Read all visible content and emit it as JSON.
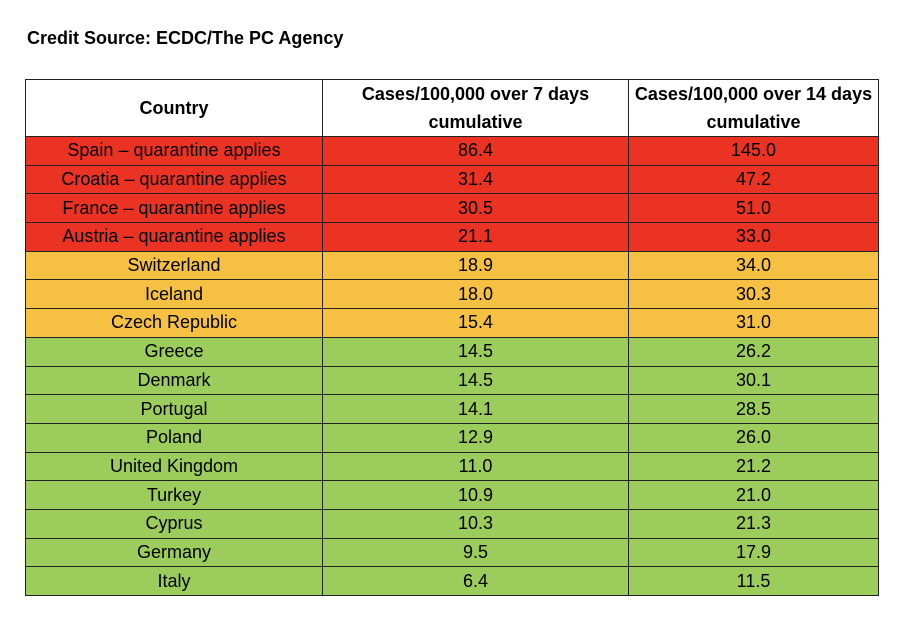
{
  "credit": "Credit Source: ECDC/The PC Agency",
  "headers": {
    "country": "Country",
    "cases7": "Cases/100,000 over 7 days cumulative",
    "cases14": "Cases/100,000 over 14 days cumulative"
  },
  "colors": {
    "quarantine": "#ea3323",
    "amber": "#f6c142",
    "green": "#9ccc5c"
  },
  "rows": [
    {
      "country": "Spain – quarantine applies",
      "cases7": "86.4",
      "cases14": "145.0",
      "status": "quarantine"
    },
    {
      "country": "Croatia – quarantine applies",
      "cases7": "31.4",
      "cases14": "47.2",
      "status": "quarantine"
    },
    {
      "country": "France – quarantine applies",
      "cases7": "30.5",
      "cases14": "51.0",
      "status": "quarantine"
    },
    {
      "country": "Austria – quarantine applies",
      "cases7": "21.1",
      "cases14": "33.0",
      "status": "quarantine"
    },
    {
      "country": "Switzerland",
      "cases7": "18.9",
      "cases14": "34.0",
      "status": "amber"
    },
    {
      "country": "Iceland",
      "cases7": "18.0",
      "cases14": "30.3",
      "status": "amber"
    },
    {
      "country": "Czech Republic",
      "cases7": "15.4",
      "cases14": "31.0",
      "status": "amber"
    },
    {
      "country": "Greece",
      "cases7": "14.5",
      "cases14": "26.2",
      "status": "green"
    },
    {
      "country": "Denmark",
      "cases7": "14.5",
      "cases14": "30.1",
      "status": "green"
    },
    {
      "country": "Portugal",
      "cases7": "14.1",
      "cases14": "28.5",
      "status": "green"
    },
    {
      "country": "Poland",
      "cases7": "12.9",
      "cases14": "26.0",
      "status": "green"
    },
    {
      "country": "United Kingdom",
      "cases7": "11.0",
      "cases14": "21.2",
      "status": "green"
    },
    {
      "country": "Turkey",
      "cases7": "10.9",
      "cases14": "21.0",
      "status": "green"
    },
    {
      "country": "Cyprus",
      "cases7": "10.3",
      "cases14": "21.3",
      "status": "green"
    },
    {
      "country": "Germany",
      "cases7": "9.5",
      "cases14": "17.9",
      "status": "green"
    },
    {
      "country": "Italy",
      "cases7": "6.4",
      "cases14": "11.5",
      "status": "green"
    }
  ]
}
